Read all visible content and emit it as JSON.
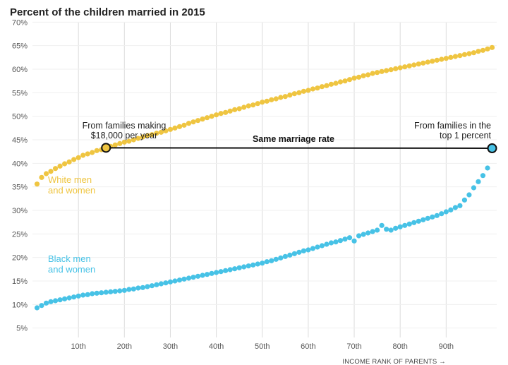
{
  "chart_data": {
    "type": "scatter",
    "title": "Percent of the children married in 2015",
    "xlabel": "INCOME RANK OF PARENTS →",
    "ylabel": "",
    "xlim": [
      0,
      101
    ],
    "ylim": [
      3,
      70.5
    ],
    "y_ticks": [
      5,
      10,
      15,
      20,
      25,
      30,
      35,
      40,
      45,
      50,
      55,
      60,
      65,
      70
    ],
    "y_tick_labels": [
      "5%",
      "10%",
      "15%",
      "20%",
      "25%",
      "30%",
      "35%",
      "40%",
      "45%",
      "50%",
      "55%",
      "60%",
      "65%",
      "70%"
    ],
    "x_ticks": [
      10,
      20,
      30,
      40,
      50,
      60,
      70,
      80,
      90
    ],
    "x_tick_labels": [
      "10th",
      "20th",
      "30th",
      "40th",
      "50th",
      "60th",
      "70th",
      "80th",
      "90th"
    ],
    "grid": "vertical",
    "series": [
      {
        "name": "White men and women",
        "color": "#efc541",
        "x": [
          1,
          2,
          3,
          4,
          5,
          6,
          7,
          8,
          9,
          10,
          11,
          12,
          13,
          14,
          15,
          16,
          17,
          18,
          19,
          20,
          21,
          22,
          23,
          24,
          25,
          26,
          27,
          28,
          29,
          30,
          31,
          32,
          33,
          34,
          35,
          36,
          37,
          38,
          39,
          40,
          41,
          42,
          43,
          44,
          45,
          46,
          47,
          48,
          49,
          50,
          51,
          52,
          53,
          54,
          55,
          56,
          57,
          58,
          59,
          60,
          61,
          62,
          63,
          64,
          65,
          66,
          67,
          68,
          69,
          70,
          71,
          72,
          73,
          74,
          75,
          76,
          77,
          78,
          79,
          80,
          81,
          82,
          83,
          84,
          85,
          86,
          87,
          88,
          89,
          90,
          91,
          92,
          93,
          94,
          95,
          96,
          97,
          98,
          99,
          100
        ],
        "values": [
          35.6,
          37.0,
          37.8,
          38.3,
          38.9,
          39.4,
          39.9,
          40.3,
          40.8,
          41.2,
          41.7,
          42.0,
          42.3,
          42.7,
          42.9,
          43.3,
          43.6,
          43.9,
          44.2,
          44.5,
          44.7,
          45.0,
          45.3,
          45.6,
          45.9,
          46.1,
          46.4,
          46.6,
          46.9,
          47.2,
          47.5,
          47.8,
          48.1,
          48.5,
          48.8,
          49.1,
          49.4,
          49.7,
          50.0,
          50.3,
          50.6,
          50.8,
          51.1,
          51.4,
          51.6,
          51.9,
          52.2,
          52.4,
          52.7,
          53.0,
          53.2,
          53.5,
          53.7,
          54.0,
          54.2,
          54.5,
          54.8,
          55.0,
          55.3,
          55.5,
          55.8,
          56.0,
          56.3,
          56.5,
          56.8,
          57.0,
          57.3,
          57.5,
          57.8,
          58.1,
          58.3,
          58.6,
          58.8,
          59.1,
          59.3,
          59.5,
          59.7,
          59.9,
          60.1,
          60.3,
          60.5,
          60.7,
          60.9,
          61.1,
          61.3,
          61.5,
          61.7,
          61.9,
          62.1,
          62.3,
          62.5,
          62.7,
          62.9,
          63.1,
          63.3,
          63.5,
          63.8,
          64.0,
          64.3,
          64.6
        ]
      },
      {
        "name": "Black men and women",
        "color": "#47c2e6",
        "x": [
          1,
          2,
          3,
          4,
          5,
          6,
          7,
          8,
          9,
          10,
          11,
          12,
          13,
          14,
          15,
          16,
          17,
          18,
          19,
          20,
          21,
          22,
          23,
          24,
          25,
          26,
          27,
          28,
          29,
          30,
          31,
          32,
          33,
          34,
          35,
          36,
          37,
          38,
          39,
          40,
          41,
          42,
          43,
          44,
          45,
          46,
          47,
          48,
          49,
          50,
          51,
          52,
          53,
          54,
          55,
          56,
          57,
          58,
          59,
          60,
          61,
          62,
          63,
          64,
          65,
          66,
          67,
          68,
          69,
          70,
          71,
          72,
          73,
          74,
          75,
          76,
          77,
          78,
          79,
          80,
          81,
          82,
          83,
          84,
          85,
          86,
          87,
          88,
          89,
          90,
          91,
          92,
          93,
          94,
          95,
          96,
          97,
          98,
          99,
          100
        ],
        "values": [
          9.3,
          9.8,
          10.3,
          10.6,
          10.8,
          11.0,
          11.2,
          11.4,
          11.6,
          11.8,
          12.0,
          12.1,
          12.3,
          12.4,
          12.5,
          12.6,
          12.7,
          12.8,
          12.9,
          13.0,
          13.2,
          13.3,
          13.5,
          13.6,
          13.8,
          14.0,
          14.2,
          14.4,
          14.6,
          14.8,
          15.0,
          15.2,
          15.4,
          15.6,
          15.8,
          16.0,
          16.2,
          16.4,
          16.6,
          16.8,
          17.0,
          17.2,
          17.4,
          17.6,
          17.8,
          18.0,
          18.2,
          18.4,
          18.6,
          18.8,
          19.1,
          19.3,
          19.6,
          19.9,
          20.2,
          20.5,
          20.8,
          21.1,
          21.4,
          21.6,
          21.9,
          22.2,
          22.5,
          22.8,
          23.1,
          23.3,
          23.6,
          23.9,
          24.2,
          23.5,
          24.6,
          24.9,
          25.2,
          25.5,
          25.8,
          26.8,
          26.0,
          25.8,
          26.2,
          26.5,
          26.8,
          27.1,
          27.4,
          27.7,
          28.0,
          28.3,
          28.6,
          28.9,
          29.3,
          29.7,
          30.1,
          30.6,
          31.0,
          32.2,
          33.3,
          34.8,
          36.1,
          37.4,
          39.0,
          43.2
        ]
      }
    ],
    "comparison": {
      "from": {
        "x": 16,
        "y": 43.3
      },
      "to": {
        "x": 100,
        "y": 43.2
      },
      "label": "Same marriage rate"
    },
    "annotations": {
      "left_line1": "From families making",
      "left_line2": "$18,000 per year",
      "right_line1": "From families in the",
      "right_line2": "top 1 percent"
    },
    "series_labels": {
      "white_line1": "White men",
      "white_line2": "and women",
      "black_line1": "Black men",
      "black_line2": "and women"
    }
  }
}
